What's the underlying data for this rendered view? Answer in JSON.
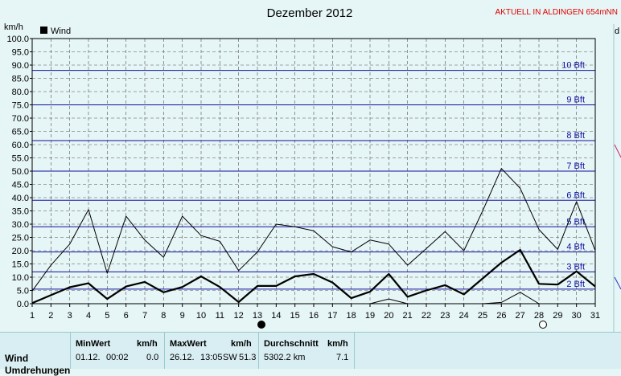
{
  "chart_data": {
    "type": "line",
    "title": "Dezember 2012",
    "header_right": "AKTUELL IN ALDINGEN 654mNN",
    "ylabel": "km/h",
    "right_edge_label": "d",
    "legend": {
      "label": "Wind",
      "placement": "top-left"
    },
    "ylim": [
      0,
      100
    ],
    "yticks": [
      "0.0",
      "5.0",
      "10.0",
      "15.0",
      "20.0",
      "25.0",
      "30.0",
      "35.0",
      "40.0",
      "45.0",
      "50.0",
      "55.0",
      "60.0",
      "65.0",
      "70.0",
      "75.0",
      "80.0",
      "85.0",
      "90.0",
      "95.0",
      "100.0"
    ],
    "x": [
      1,
      2,
      3,
      4,
      5,
      6,
      7,
      8,
      9,
      10,
      11,
      12,
      13,
      14,
      15,
      16,
      17,
      18,
      19,
      20,
      21,
      22,
      23,
      24,
      25,
      26,
      27,
      28,
      29,
      30,
      31
    ],
    "xticks": [
      "1",
      "2",
      "3",
      "4",
      "5",
      "6",
      "7",
      "8",
      "9",
      "10",
      "11",
      "12",
      "13",
      "14",
      "15",
      "16",
      "17",
      "18",
      "19",
      "20",
      "21",
      "22",
      "23",
      "24",
      "25",
      "26",
      "27",
      "28",
      "29",
      "30",
      "31"
    ],
    "grid": true,
    "beaufort_lines": [
      {
        "label": "2 Bft",
        "value": 5.5
      },
      {
        "label": "3 Bft",
        "value": 12
      },
      {
        "label": "4 Bft",
        "value": 19.5
      },
      {
        "label": "5 Bft",
        "value": 29
      },
      {
        "label": "6 Bft",
        "value": 39
      },
      {
        "label": "7 Bft",
        "value": 50
      },
      {
        "label": "8 Bft",
        "value": 61.5
      },
      {
        "label": "9 Bft",
        "value": 75
      },
      {
        "label": "10 Bft",
        "value": 88
      }
    ],
    "series": [
      {
        "name": "Wind",
        "values": [
          0.2,
          3.2,
          6.2,
          7.7,
          1.8,
          6.5,
          8.2,
          4.3,
          6.3,
          10.3,
          6.3,
          0.6,
          6.7,
          6.7,
          10.3,
          11.2,
          8,
          2.1,
          4.5,
          11.2,
          2.6,
          5,
          7,
          3.5,
          9.5,
          15.5,
          20.3,
          7.5,
          7.2,
          12.2,
          6.5
        ]
      },
      {
        "values": [
          4.8,
          14.5,
          22.5,
          35.5,
          11.5,
          33,
          24,
          17.5,
          33,
          25.7,
          23.5,
          12.5,
          19.5,
          30,
          29,
          27.5,
          21.5,
          19.5,
          24,
          22.5,
          14.5,
          20.8,
          27.2,
          20,
          35,
          51,
          43.5,
          28,
          20.5,
          38.5,
          20
        ]
      },
      {
        "values": [
          0,
          0,
          0,
          0,
          0,
          0,
          0,
          0,
          0,
          0,
          0,
          0,
          0,
          0,
          0,
          0,
          0,
          0,
          0,
          1.8,
          0,
          0,
          0,
          0,
          0,
          0.5,
          4.3,
          0,
          0,
          0,
          0
        ]
      }
    ],
    "moon_markers": [
      {
        "day": 13,
        "phase": "new"
      },
      {
        "day": 28,
        "phase": "full"
      }
    ]
  },
  "table": {
    "row_label": "Wind",
    "row_label_2": "Umdrehungen",
    "min": {
      "header": "MinWert",
      "unit": "km/h",
      "date": "01.12.",
      "time": "00:02",
      "value": "0.0"
    },
    "max": {
      "header": "MaxWert",
      "unit": "km/h",
      "date": "26.12.",
      "time": "13:05",
      "dir": "SW",
      "value": "51.3"
    },
    "avg": {
      "header": "Durchschnitt",
      "unit": "km/h",
      "distance": "5302.2 km",
      "value": "7.1"
    }
  }
}
